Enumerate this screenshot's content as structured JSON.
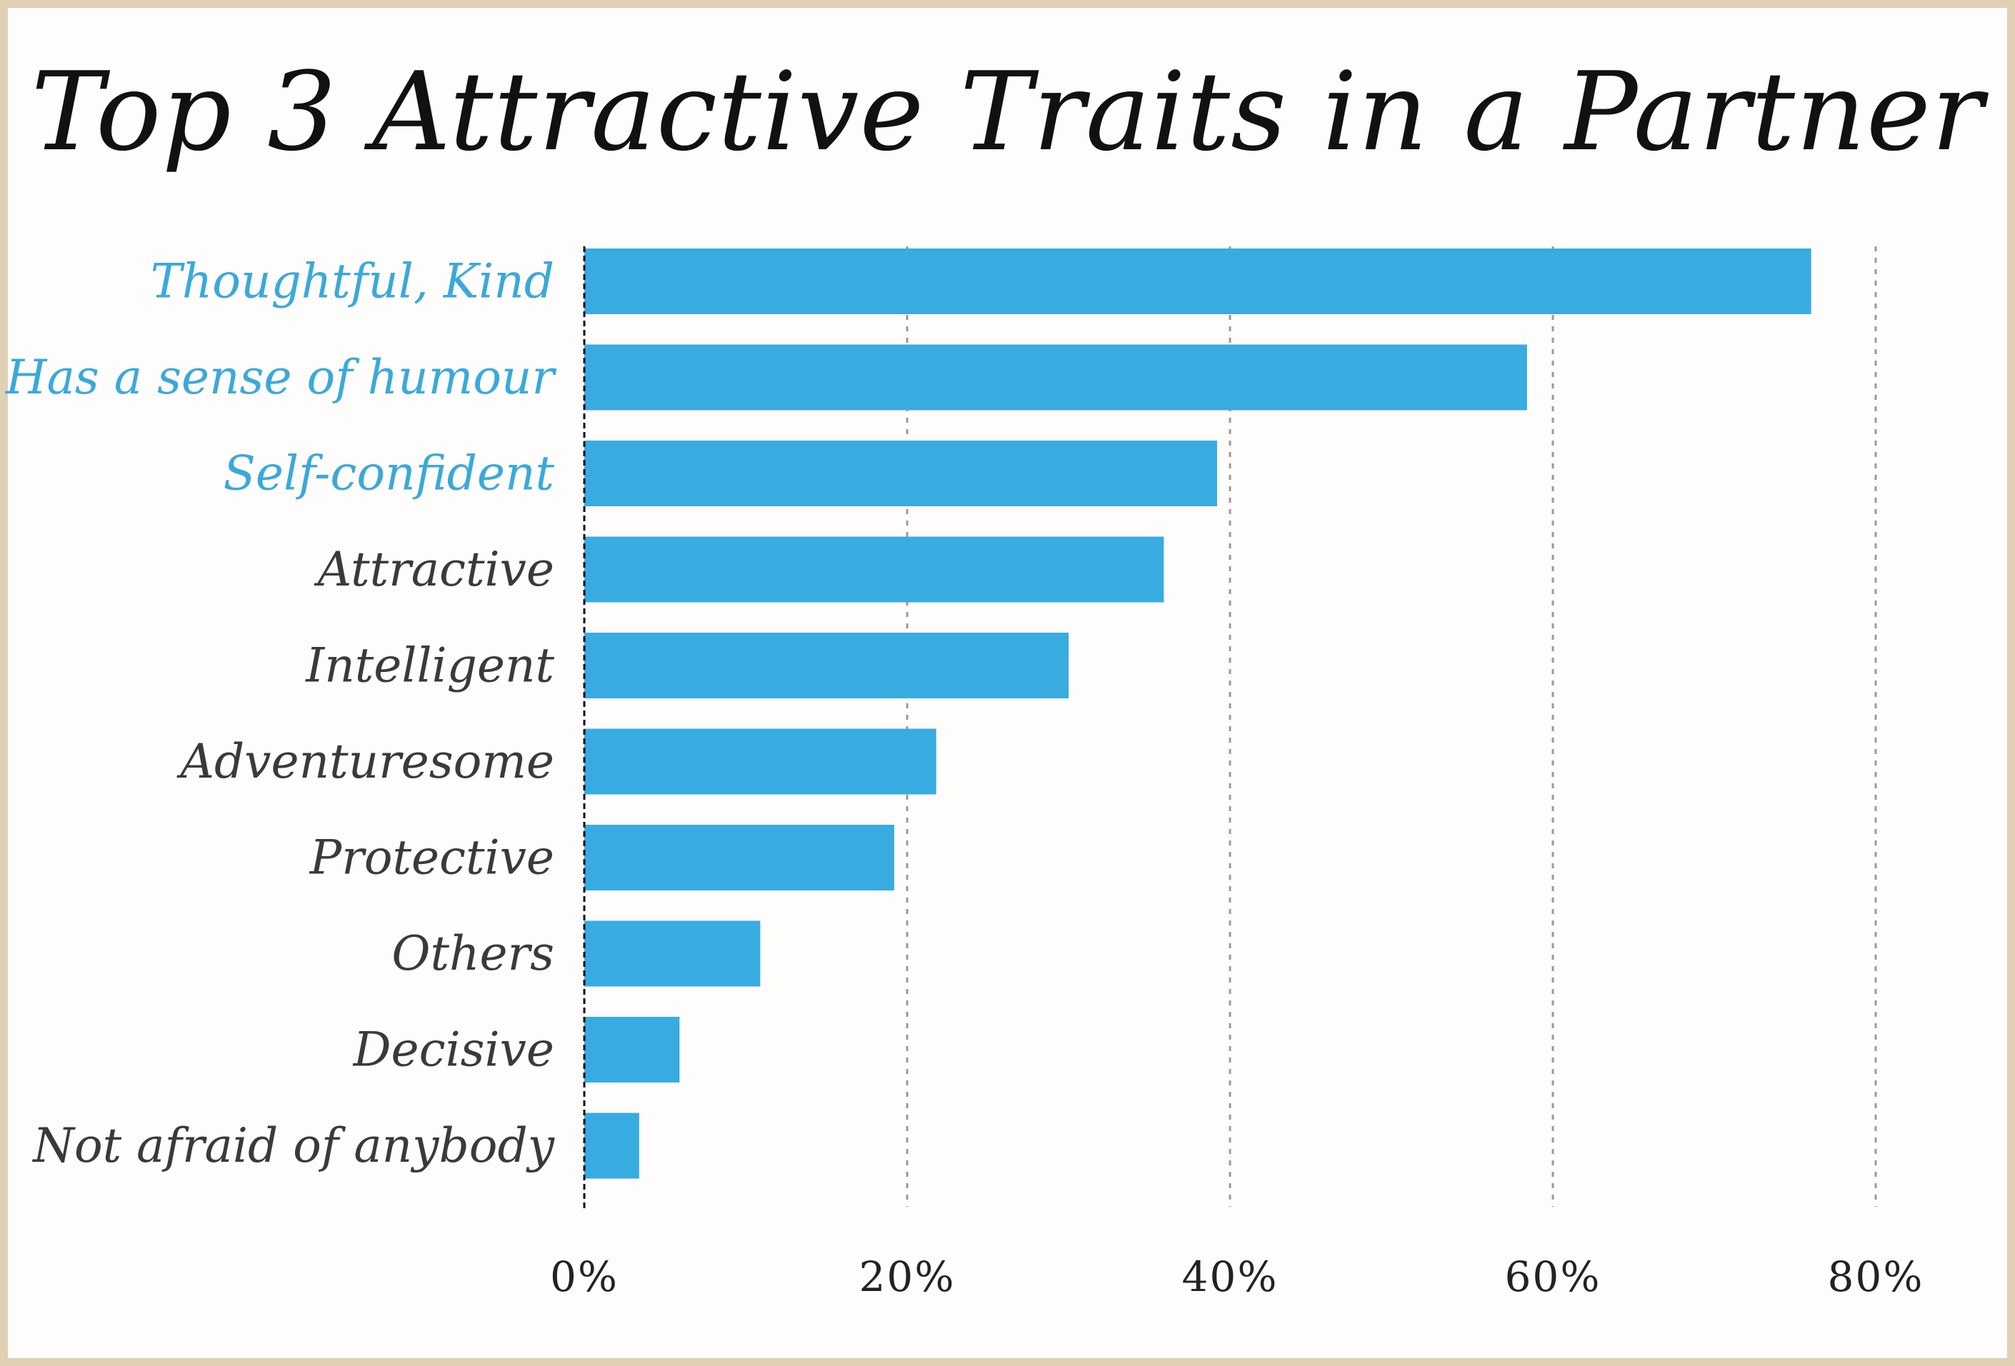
{
  "chart_data": {
    "type": "bar",
    "orientation": "horizontal",
    "title": "Top 3 Attractive Traits in a Partner",
    "xlabel": "",
    "ylabel": "",
    "categories": [
      "Thoughtful, Kind",
      "Has a sense of humour",
      "Self-confident",
      "Attractive",
      "Intelligent",
      "Adventuresome",
      "Protective",
      "Others",
      "Decisive",
      "Not afraid of anybody"
    ],
    "values": [
      76,
      58.4,
      39.2,
      35.9,
      30,
      21.8,
      19.2,
      10.9,
      5.9,
      3.4
    ],
    "highlighted_count": 3,
    "xlim": [
      0,
      80
    ],
    "x_ticks": [
      0,
      20,
      40,
      60,
      80
    ],
    "x_tick_labels": [
      "0%",
      "20%",
      "40%",
      "60%",
      "80%"
    ],
    "grid": "vertical dotted",
    "colors": {
      "bar": "#38abe0",
      "highlight_label": "#3aa9da",
      "default_label": "#3a3a3a",
      "title": "#111111",
      "border": "#e0d0b4",
      "background": "#fffcfc",
      "grid": "#9a9a9a"
    }
  }
}
